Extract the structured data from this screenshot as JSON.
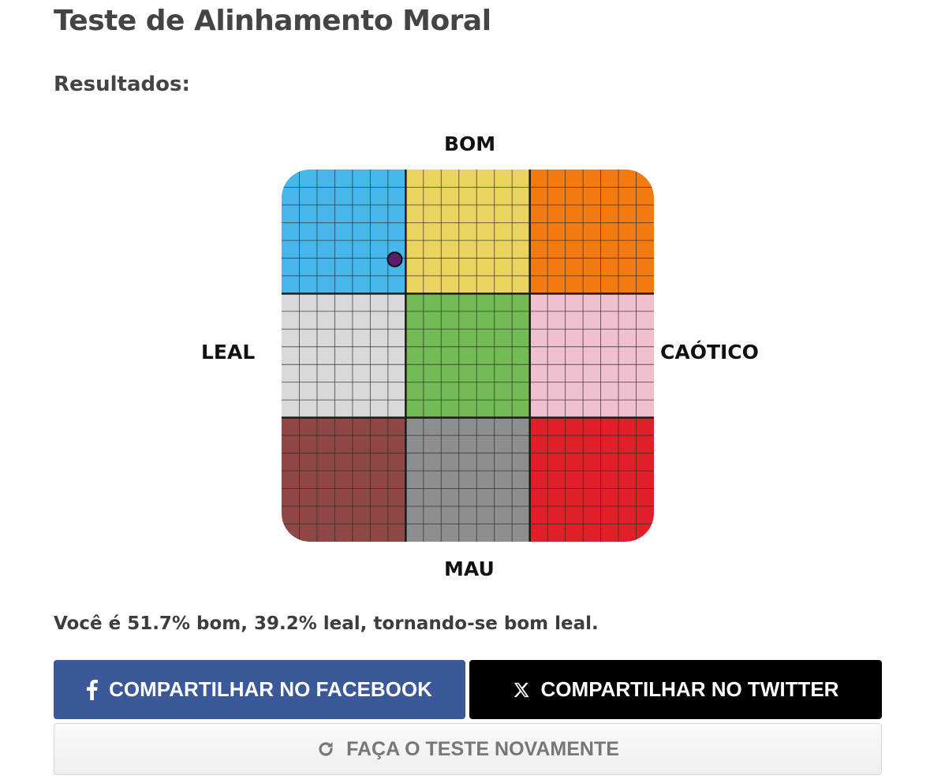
{
  "header": {
    "title": "Teste de Alinhamento Moral",
    "subtitle": "Resultados:"
  },
  "chart_data": {
    "type": "scatter",
    "title": "",
    "axis_labels": {
      "top": "BOM",
      "bottom": "MAU",
      "left": "LEAL",
      "right": "CAÓTICO"
    },
    "grid": true,
    "cells_per_quadrant": 7,
    "quadrant_colors": [
      [
        "#47b6ea",
        "#ebd360",
        "#f27a10"
      ],
      [
        "#d9d9db",
        "#73bb54",
        "#f0c0cd"
      ],
      [
        "#8e4744",
        "#8d8e8f",
        "#e11f29"
      ]
    ],
    "point": {
      "good_percent": 51.7,
      "lawful_percent": 39.2,
      "color": "#5a1e6a"
    }
  },
  "result": {
    "text": "Você é 51.7% bom, 39.2% leal, tornando-se bom leal."
  },
  "buttons": {
    "facebook_label": "COMPARTILHAR NO FACEBOOK",
    "twitter_label": "COMPARTILHAR NO TWITTER",
    "retry_label": "FAÇA O TESTE NOVAMENTE",
    "facebook_icon": "facebook-icon",
    "twitter_icon": "x-icon",
    "retry_icon": "refresh-icon"
  }
}
